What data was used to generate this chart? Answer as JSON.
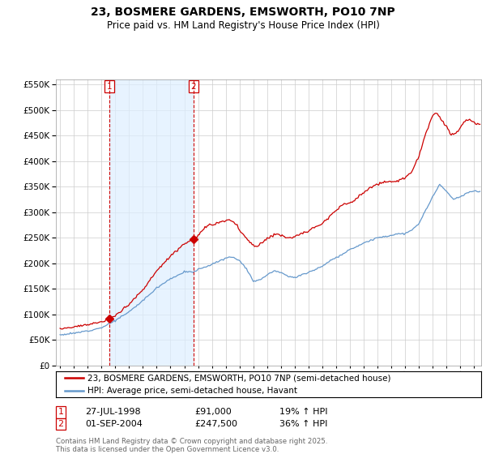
{
  "title": "23, BOSMERE GARDENS, EMSWORTH, PO10 7NP",
  "subtitle": "Price paid vs. HM Land Registry's House Price Index (HPI)",
  "legend_line1": "23, BOSMERE GARDENS, EMSWORTH, PO10 7NP (semi-detached house)",
  "legend_line2": "HPI: Average price, semi-detached house, Havant",
  "footer": "Contains HM Land Registry data © Crown copyright and database right 2025.\nThis data is licensed under the Open Government Licence v3.0.",
  "sale1_label": "1",
  "sale1_date": "27-JUL-1998",
  "sale1_price": "£91,000",
  "sale1_hpi": "19% ↑ HPI",
  "sale2_label": "2",
  "sale2_date": "01-SEP-2004",
  "sale2_price": "£247,500",
  "sale2_hpi": "36% ↑ HPI",
  "red_color": "#cc0000",
  "blue_color": "#6699cc",
  "shade_color": "#ddeeff",
  "grid_color": "#cccccc",
  "background_color": "#ffffff",
  "sale1_x": 1998.58,
  "sale1_y": 91000,
  "sale2_x": 2004.67,
  "sale2_y": 247500,
  "ylim": [
    0,
    560000
  ],
  "xlim_start": 1994.7,
  "xlim_end": 2025.5
}
